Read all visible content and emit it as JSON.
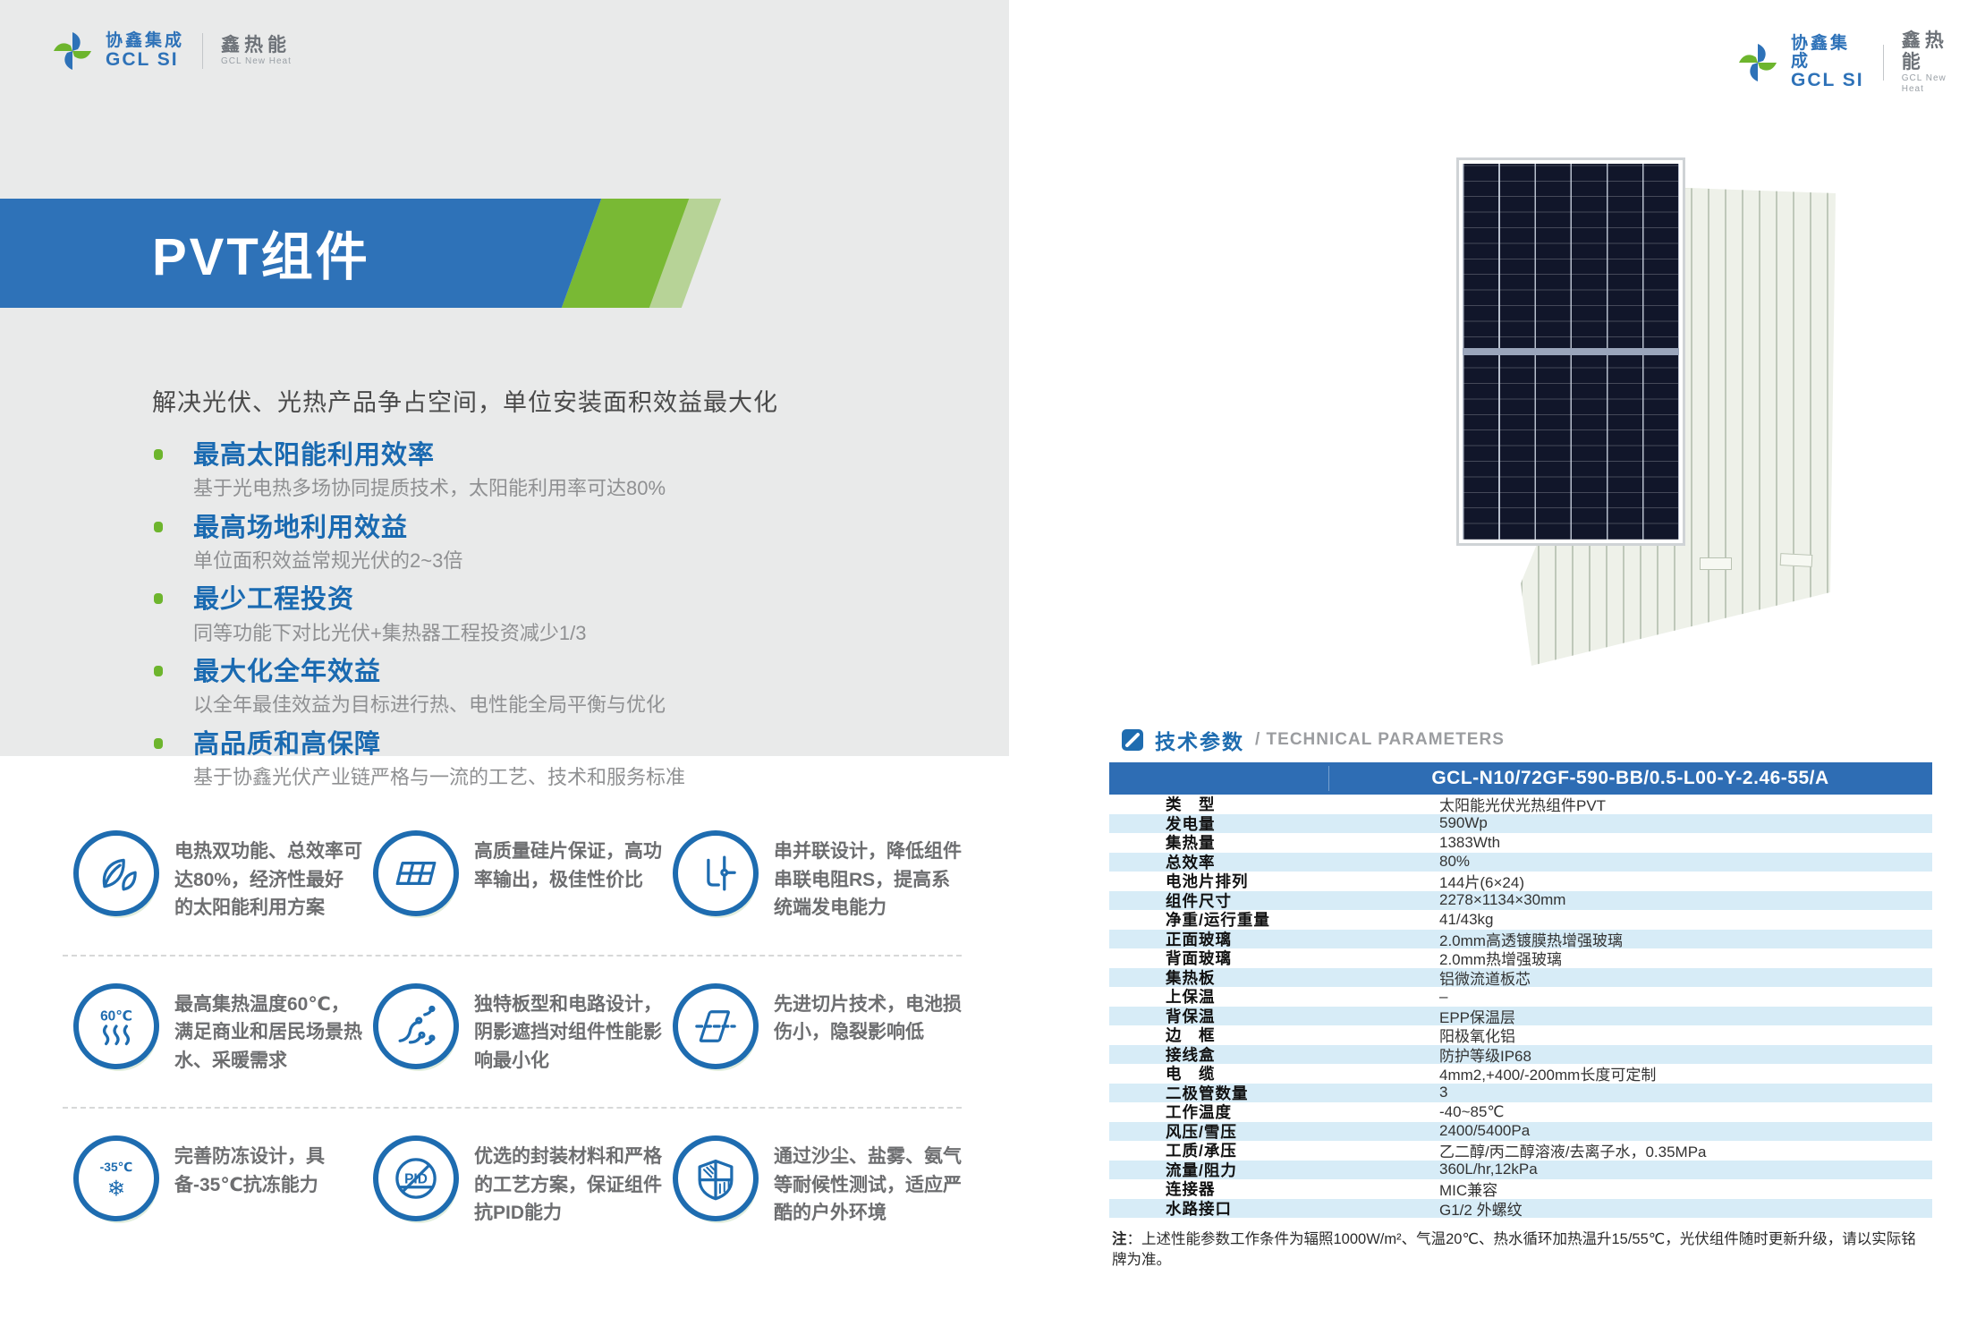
{
  "brand": {
    "name_cn": "协鑫集成",
    "name_en": "GCL SI",
    "sub_cn": "鑫热能",
    "sub_en": "GCL New Heat"
  },
  "colors": {
    "brand_blue": "#2e72b8",
    "brand_green": "#79b934",
    "heading_blue": "#1a6ab1",
    "table_header_blue": "#2e6db4",
    "table_stripe_blue": "#d7ecf7",
    "icon_blue": "#1e6cb0",
    "bullet_green": "#6db52d"
  },
  "left": {
    "title": "PVT组件",
    "subtitle": "解决光伏、光热产品争占空间，单位安装面积效益最大化",
    "bullets": [
      {
        "heading": "最高太阳能利用效率",
        "body": "基于光电热多场协同提质技术，太阳能利用率可达80%"
      },
      {
        "heading": "最高场地利用效益",
        "body": "单位面积效益常规光伏的2~3倍"
      },
      {
        "heading": "最少工程投资",
        "body": "同等功能下对比光伏+集热器工程投资减少1/3"
      },
      {
        "heading": "最大化全年效益",
        "body": "以全年最佳效益为目标进行热、电性能全局平衡与优化"
      },
      {
        "heading": "高品质和高保障",
        "body": "基于协鑫光伏产业链严格与一流的工艺、技术和服务标准"
      }
    ],
    "features": [
      {
        "icon": "dual-energy-leaves-icon",
        "text": "电热双功能、总效率可达80%，经济性最好的太阳能利用方案"
      },
      {
        "icon": "solar-panel-icon",
        "text": "高质量硅片保证，高功率输出，极佳性价比"
      },
      {
        "icon": "series-parallel-circuit-icon",
        "text": "串并联设计，降低组件串联电阻RS，提高系统端发电能力"
      },
      {
        "icon": "heat-60c-icon",
        "badge": "60℃",
        "text": "最高集热温度60℃，满足商业和居民场景热水、采暖需求"
      },
      {
        "icon": "circuit-board-icon",
        "text": "独特板型和电路设计，阴影遮挡对组件性能影响最小化"
      },
      {
        "icon": "wafer-slicing-icon",
        "text": "先进切片技术，电池损伤小，隐裂影响低"
      },
      {
        "icon": "frost-resistance-icon",
        "badge": "-35℃",
        "text": "完善防冻设计，具备-35℃抗冻能力"
      },
      {
        "icon": "anti-pid-icon",
        "badge": "PID",
        "text": "优选的封装材料和严格的工艺方案，保证组件抗PID能力"
      },
      {
        "icon": "weather-shield-icon",
        "text": "通过沙尘、盐雾、氨气等耐候性测试，适应严酷的户外环境"
      }
    ]
  },
  "right": {
    "section_title_cn": "技术参数",
    "section_title_en": "/ TECHNICAL PARAMETERS",
    "table": {
      "model": "GCL-N10/72GF-590-BB/0.5-L00-Y-2.46-55/A",
      "rows": [
        {
          "label": "类　型",
          "value": "太阳能光伏光热组件PVT"
        },
        {
          "label": "发电量",
          "value": "590Wp"
        },
        {
          "label": "集热量",
          "value": "1383Wth"
        },
        {
          "label": "总效率",
          "value": "80%"
        },
        {
          "label": "电池片排列",
          "value": "144片(6×24)"
        },
        {
          "label": "组件尺寸",
          "value": "2278×1134×30mm"
        },
        {
          "label": "净重/运行重量",
          "value": "41/43kg"
        },
        {
          "label": "正面玻璃",
          "value": "2.0mm高透镀膜热增强玻璃"
        },
        {
          "label": "背面玻璃",
          "value": "2.0mm热增强玻璃"
        },
        {
          "label": "集热板",
          "value": "铝微流道板芯"
        },
        {
          "label": "上保温",
          "value": "–"
        },
        {
          "label": "背保温",
          "value": "EPP保温层"
        },
        {
          "label": "边　框",
          "value": "阳极氧化铝"
        },
        {
          "label": "接线盒",
          "value": "防护等级IP68"
        },
        {
          "label": "电　缆",
          "value": "4mm2,+400/-200mm长度可定制"
        },
        {
          "label": "二极管数量",
          "value": "3"
        },
        {
          "label": "工作温度",
          "value": "-40~85℃"
        },
        {
          "label": "风压/雪压",
          "value": "2400/5400Pa"
        },
        {
          "label": "工质/承压",
          "value": "乙二醇/丙二醇溶液/去离子水，0.35MPa"
        },
        {
          "label": "流量/阻力",
          "value": "360L/hr,12kPa"
        },
        {
          "label": "连接器",
          "value": "MIC兼容"
        },
        {
          "label": "水路接口",
          "value": "G1/2 外螺纹"
        }
      ]
    },
    "note_label": "注",
    "note_text": "：上述性能参数工作条件为辐照1000W/m²、气温20℃、热水循环加热温升15/55℃，光伏组件随时更新升级，请以实际铭牌为准。"
  }
}
